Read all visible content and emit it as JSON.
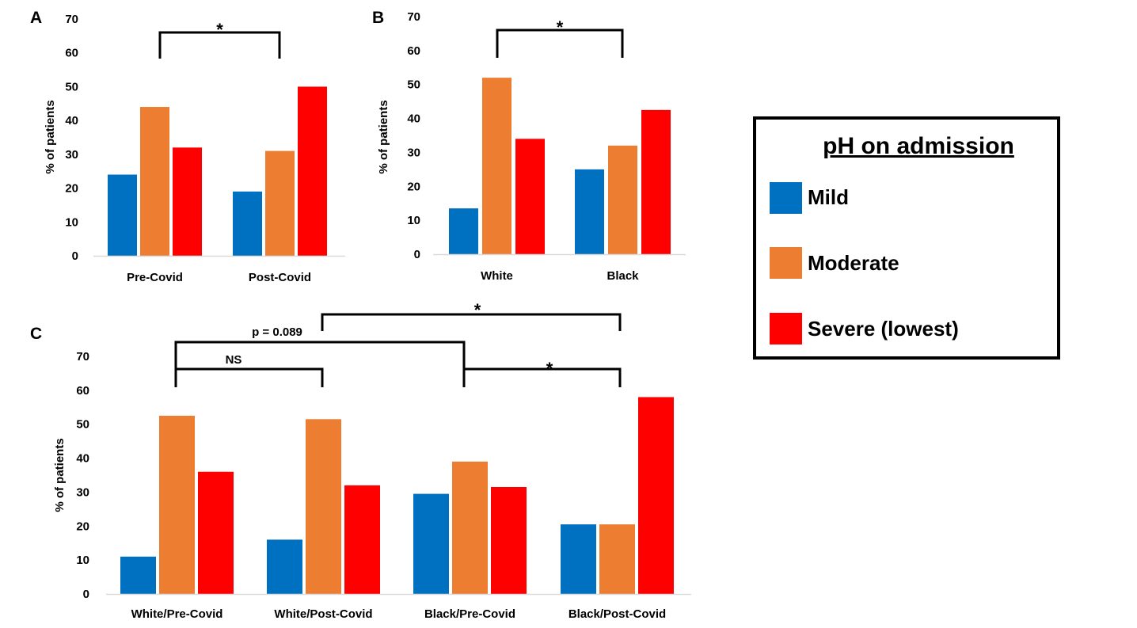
{
  "colors": {
    "Mild": "#0070C0",
    "Moderate": "#ED7D31",
    "Severe (lowest)": "#FF0000"
  },
  "legend": {
    "title": "pH on admission",
    "items": [
      "Mild",
      "Moderate",
      "Severe (lowest)"
    ]
  },
  "chart_data": [
    {
      "panel": "A",
      "type": "bar",
      "categories": [
        "Pre-Covid",
        "Post-Covid"
      ],
      "series": [
        {
          "name": "Mild",
          "values": [
            24,
            19
          ]
        },
        {
          "name": "Moderate",
          "values": [
            44,
            31
          ]
        },
        {
          "name": "Severe (lowest)",
          "values": [
            32,
            50
          ]
        }
      ],
      "ylabel": "% of patients",
      "ylim": [
        0,
        70
      ],
      "yticks": [
        "0",
        "10",
        "20",
        "30",
        "40",
        "50",
        "60",
        "70"
      ],
      "annotations": [
        {
          "text": "*",
          "from": "Pre-Covid",
          "to": "Post-Covid"
        }
      ]
    },
    {
      "panel": "B",
      "type": "bar",
      "categories": [
        "White",
        "Black"
      ],
      "series": [
        {
          "name": "Mild",
          "values": [
            13.5,
            25
          ]
        },
        {
          "name": "Moderate",
          "values": [
            52,
            32
          ]
        },
        {
          "name": "Severe (lowest)",
          "values": [
            34,
            42.5
          ]
        }
      ],
      "ylabel": "% of patients",
      "ylim": [
        0,
        70
      ],
      "yticks": [
        "0",
        "10",
        "20",
        "30",
        "40",
        "50",
        "60",
        "70"
      ],
      "annotations": [
        {
          "text": "*",
          "from": "White",
          "to": "Black"
        }
      ]
    },
    {
      "panel": "C",
      "type": "bar",
      "categories": [
        "White/Pre-Covid",
        "White/Post-Covid",
        "Black/Pre-Covid",
        "Black/Post-Covid"
      ],
      "series": [
        {
          "name": "Mild",
          "values": [
            11,
            16,
            29.5,
            20.5
          ]
        },
        {
          "name": "Moderate",
          "values": [
            52.5,
            51.5,
            39,
            20.5
          ]
        },
        {
          "name": "Severe (lowest)",
          "values": [
            36,
            32,
            31.5,
            58
          ]
        }
      ],
      "ylabel": "% of patients",
      "ylim": [
        0,
        70
      ],
      "yticks": [
        "0",
        "10",
        "20",
        "30",
        "40",
        "50",
        "60",
        "70"
      ],
      "annotations": [
        {
          "text": "NS",
          "from": "White/Pre-Covid",
          "to": "White/Post-Covid"
        },
        {
          "text": "p = 0.089",
          "from": "White/Pre-Covid",
          "to": "Black/Pre-Covid"
        },
        {
          "text": "*",
          "from": "White/Post-Covid",
          "to": "Black/Post-Covid"
        },
        {
          "text": "*",
          "from": "Black/Pre-Covid",
          "to": "Black/Post-Covid"
        }
      ]
    }
  ]
}
